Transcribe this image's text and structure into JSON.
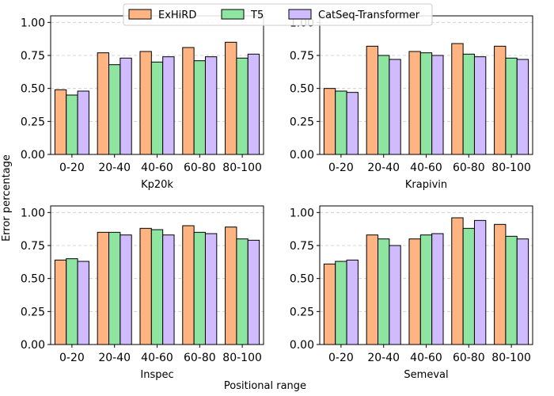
{
  "colors": {
    "ExHiRD": "#ffb482",
    "T5": "#8de5a1",
    "CatSeq-Transformer": "#d0bbff",
    "grid": "#c8c8c8",
    "edge": "#000000"
  },
  "legend": {
    "placement": "top-center",
    "items": [
      "ExHiRD",
      "T5",
      "CatSeq-Transformer"
    ]
  },
  "supxlabel": "Positional range",
  "supylabel": "Error percentage",
  "chart_data": [
    {
      "type": "bar",
      "xlabel": "Kp20k",
      "categories": [
        "0-20",
        "20-40",
        "40-60",
        "60-80",
        "80-100"
      ],
      "ylim": [
        0,
        1.05
      ],
      "yticks": [
        "0.00",
        "0.25",
        "0.50",
        "0.75",
        "1.00"
      ],
      "grid": "y-dashed",
      "series": [
        {
          "name": "ExHiRD",
          "values": [
            0.49,
            0.77,
            0.78,
            0.81,
            0.85
          ]
        },
        {
          "name": "T5",
          "values": [
            0.45,
            0.68,
            0.7,
            0.71,
            0.73
          ]
        },
        {
          "name": "CatSeq-Transformer",
          "values": [
            0.48,
            0.73,
            0.74,
            0.74,
            0.76
          ]
        }
      ]
    },
    {
      "type": "bar",
      "xlabel": "Krapivin",
      "categories": [
        "0-20",
        "20-40",
        "40-60",
        "60-80",
        "80-100"
      ],
      "ylim": [
        0,
        1.05
      ],
      "yticks": [
        "0.00",
        "0.25",
        "0.50",
        "0.75",
        "1.00"
      ],
      "grid": "y-dashed",
      "series": [
        {
          "name": "ExHiRD",
          "values": [
            0.5,
            0.82,
            0.78,
            0.84,
            0.82
          ]
        },
        {
          "name": "T5",
          "values": [
            0.48,
            0.75,
            0.77,
            0.76,
            0.73
          ]
        },
        {
          "name": "CatSeq-Transformer",
          "values": [
            0.47,
            0.72,
            0.75,
            0.74,
            0.72
          ]
        }
      ]
    },
    {
      "type": "bar",
      "xlabel": "Inspec",
      "categories": [
        "0-20",
        "20-40",
        "40-60",
        "60-80",
        "80-100"
      ],
      "ylim": [
        0,
        1.05
      ],
      "yticks": [
        "0.00",
        "0.25",
        "0.50",
        "0.75",
        "1.00"
      ],
      "grid": "y-dashed",
      "series": [
        {
          "name": "ExHiRD",
          "values": [
            0.64,
            0.85,
            0.88,
            0.9,
            0.89
          ]
        },
        {
          "name": "T5",
          "values": [
            0.65,
            0.85,
            0.87,
            0.85,
            0.8
          ]
        },
        {
          "name": "CatSeq-Transformer",
          "values": [
            0.63,
            0.83,
            0.83,
            0.84,
            0.79
          ]
        }
      ]
    },
    {
      "type": "bar",
      "xlabel": "Semeval",
      "categories": [
        "0-20",
        "20-40",
        "40-60",
        "60-80",
        "80-100"
      ],
      "ylim": [
        0,
        1.05
      ],
      "yticks": [
        "0.00",
        "0.25",
        "0.50",
        "0.75",
        "1.00"
      ],
      "grid": "y-dashed",
      "series": [
        {
          "name": "ExHiRD",
          "values": [
            0.61,
            0.83,
            0.8,
            0.96,
            0.91
          ]
        },
        {
          "name": "T5",
          "values": [
            0.63,
            0.8,
            0.83,
            0.88,
            0.82
          ]
        },
        {
          "name": "CatSeq-Transformer",
          "values": [
            0.64,
            0.75,
            0.84,
            0.94,
            0.8
          ]
        }
      ]
    }
  ]
}
